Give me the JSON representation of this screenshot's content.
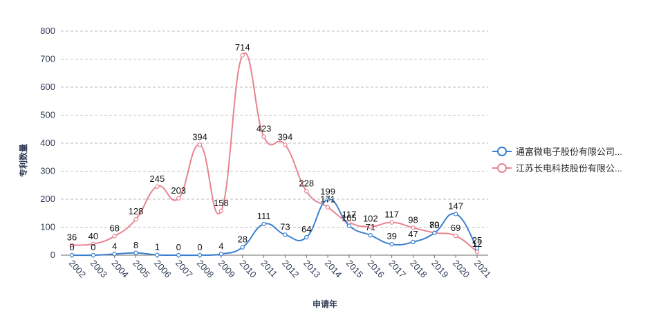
{
  "chart_data": {
    "type": "line",
    "title": "",
    "xlabel": "申请年",
    "ylabel": "专利数量",
    "ylim": [
      0,
      800
    ],
    "yticks": [
      0,
      100,
      200,
      300,
      400,
      500,
      600,
      700,
      800
    ],
    "grid": true,
    "legend_position": "right",
    "categories": [
      "2002",
      "2003",
      "2004",
      "2005",
      "2006",
      "2007",
      "2008",
      "2009",
      "2010",
      "2011",
      "2012",
      "2013",
      "2014",
      "2015",
      "2016",
      "2017",
      "2018",
      "2019",
      "2020",
      "2021"
    ],
    "series": [
      {
        "name": "通富微电子股份有限公司...",
        "color": "#3a7fcf",
        "values": [
          0,
          0,
          4,
          8,
          1,
          0,
          0,
          4,
          28,
          111,
          73,
          64,
          199,
          105,
          71,
          39,
          47,
          79,
          147,
          25
        ]
      },
      {
        "name": "江苏长电科技股份有限公...",
        "color": "#e8838f",
        "values": [
          36,
          40,
          68,
          128,
          245,
          203,
          394,
          158,
          714,
          423,
          394,
          228,
          171,
          117,
          102,
          117,
          98,
          80,
          69,
          12
        ]
      }
    ]
  }
}
